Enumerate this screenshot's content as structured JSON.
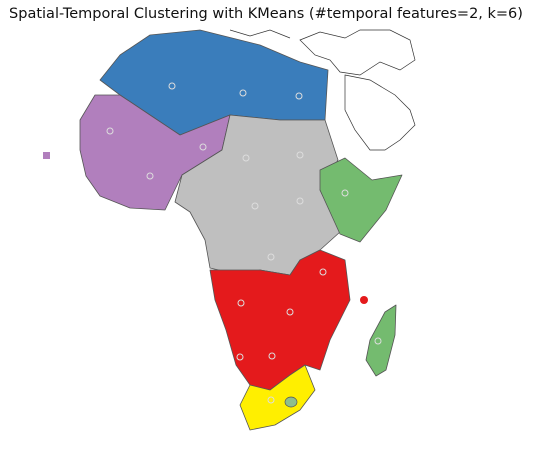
{
  "title": "Spatial-Temporal Clustering with KMeans (#temporal features=2, k=6)"
}
